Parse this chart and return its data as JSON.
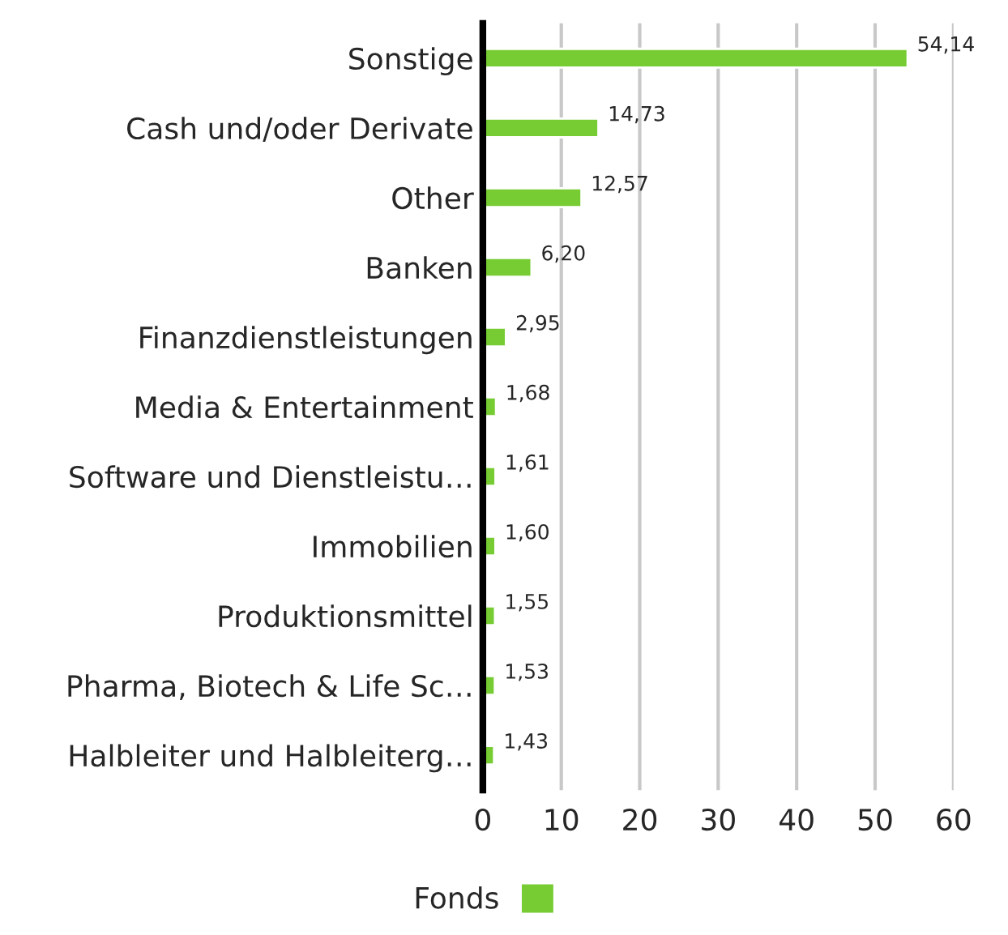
{
  "chart_data": {
    "type": "bar",
    "orientation": "horizontal",
    "categories": [
      "Sonstige",
      "Cash und/oder Derivate",
      "Other",
      "Banken",
      "Finanzdienstleistungen",
      "Media & Entertainment",
      "Software und Dienstleistu…",
      "Immobilien",
      "Produktionsmittel",
      "Pharma, Biotech & Life Sc…",
      "Halbleiter und Halbleiterg…"
    ],
    "series": [
      {
        "name": "Fonds",
        "color": "#77cc33",
        "values": [
          54.14,
          14.73,
          12.57,
          6.2,
          2.95,
          1.68,
          1.61,
          1.6,
          1.55,
          1.53,
          1.43
        ],
        "value_labels": [
          "54,14",
          "14,73",
          "12,57",
          "6,20",
          "2,95",
          "1,68",
          "1,61",
          "1,60",
          "1,55",
          "1,53",
          "1,43"
        ]
      }
    ],
    "xlim": [
      0,
      60
    ],
    "xticks": [
      0,
      10,
      20,
      30,
      40,
      50,
      60
    ],
    "grid": "x",
    "legend": "bottom"
  }
}
